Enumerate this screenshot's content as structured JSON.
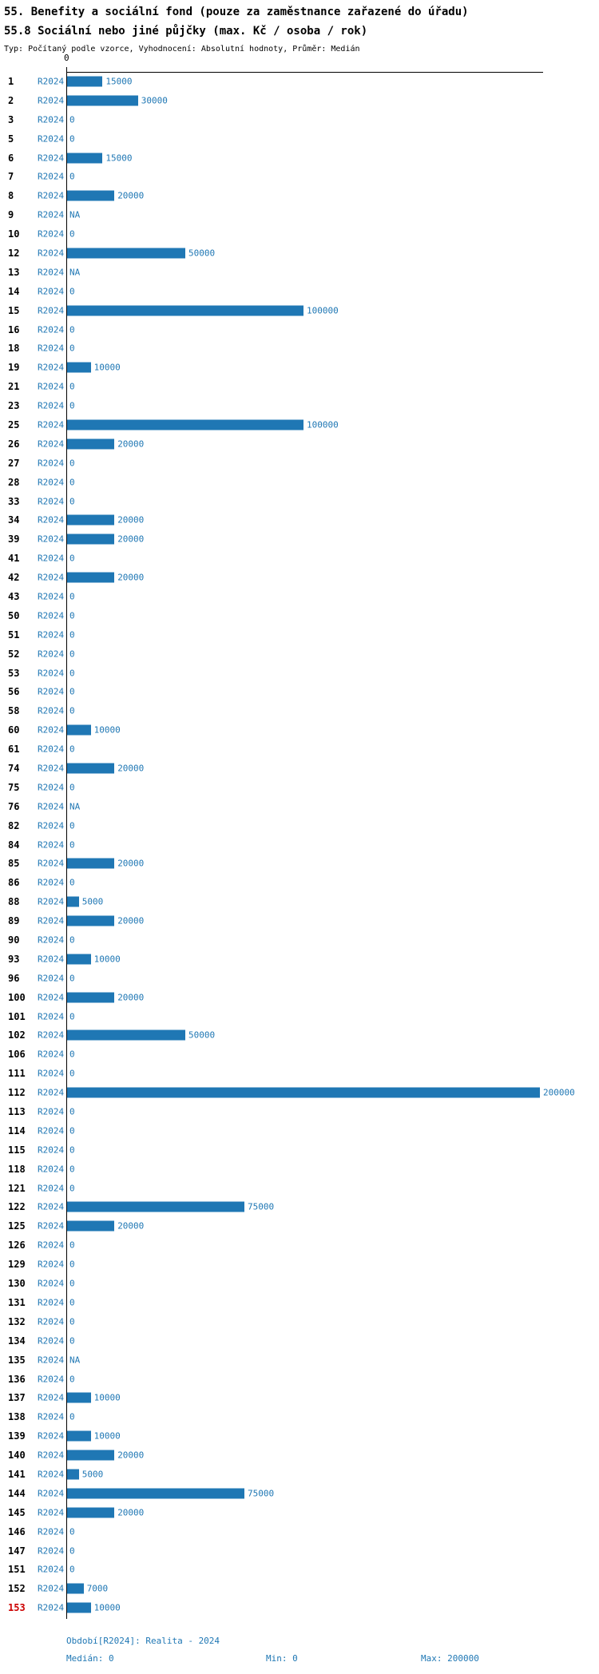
{
  "header": {
    "title": "55. Benefity a sociální fond (pouze za zaměstnance zařazené do úřadu)",
    "subtitle": "55.8 Sociální nebo jiné půjčky (max. Kč / osoba / rok)",
    "meta": "Typ: Počítaný podle vzorce, Vyhodnocení: Absolutní hodnoty, Průměr: Medián"
  },
  "chart_data": {
    "type": "bar",
    "orientation": "horizontal",
    "series_label": "R2024",
    "xlim": [
      0,
      200000
    ],
    "axis": {
      "tick_labels": [
        "0"
      ]
    },
    "grid": false,
    "bar_color": "#1f77b4",
    "label_color": "#1f77b4",
    "id_color": "#000000",
    "highlight_color": "#cc0000",
    "highlight_row_id": "153",
    "rows": [
      {
        "id": "1",
        "value": 15000,
        "label": "15000"
      },
      {
        "id": "2",
        "value": 30000,
        "label": "30000"
      },
      {
        "id": "3",
        "value": 0,
        "label": "0"
      },
      {
        "id": "5",
        "value": 0,
        "label": "0"
      },
      {
        "id": "6",
        "value": 15000,
        "label": "15000"
      },
      {
        "id": "7",
        "value": 0,
        "label": "0"
      },
      {
        "id": "8",
        "value": 20000,
        "label": "20000"
      },
      {
        "id": "9",
        "value": null,
        "label": "NA"
      },
      {
        "id": "10",
        "value": 0,
        "label": "0"
      },
      {
        "id": "12",
        "value": 50000,
        "label": "50000"
      },
      {
        "id": "13",
        "value": null,
        "label": "NA"
      },
      {
        "id": "14",
        "value": 0,
        "label": "0"
      },
      {
        "id": "15",
        "value": 100000,
        "label": "100000"
      },
      {
        "id": "16",
        "value": 0,
        "label": "0"
      },
      {
        "id": "18",
        "value": 0,
        "label": "0"
      },
      {
        "id": "19",
        "value": 10000,
        "label": "10000"
      },
      {
        "id": "21",
        "value": 0,
        "label": "0"
      },
      {
        "id": "23",
        "value": 0,
        "label": "0"
      },
      {
        "id": "25",
        "value": 100000,
        "label": "100000"
      },
      {
        "id": "26",
        "value": 20000,
        "label": "20000"
      },
      {
        "id": "27",
        "value": 0,
        "label": "0"
      },
      {
        "id": "28",
        "value": 0,
        "label": "0"
      },
      {
        "id": "33",
        "value": 0,
        "label": "0"
      },
      {
        "id": "34",
        "value": 20000,
        "label": "20000"
      },
      {
        "id": "39",
        "value": 20000,
        "label": "20000"
      },
      {
        "id": "41",
        "value": 0,
        "label": "0"
      },
      {
        "id": "42",
        "value": 20000,
        "label": "20000"
      },
      {
        "id": "43",
        "value": 0,
        "label": "0"
      },
      {
        "id": "50",
        "value": 0,
        "label": "0"
      },
      {
        "id": "51",
        "value": 0,
        "label": "0"
      },
      {
        "id": "52",
        "value": 0,
        "label": "0"
      },
      {
        "id": "53",
        "value": 0,
        "label": "0"
      },
      {
        "id": "56",
        "value": 0,
        "label": "0"
      },
      {
        "id": "58",
        "value": 0,
        "label": "0"
      },
      {
        "id": "60",
        "value": 10000,
        "label": "10000"
      },
      {
        "id": "61",
        "value": 0,
        "label": "0"
      },
      {
        "id": "74",
        "value": 20000,
        "label": "20000"
      },
      {
        "id": "75",
        "value": 0,
        "label": "0"
      },
      {
        "id": "76",
        "value": null,
        "label": "NA"
      },
      {
        "id": "82",
        "value": 0,
        "label": "0"
      },
      {
        "id": "84",
        "value": 0,
        "label": "0"
      },
      {
        "id": "85",
        "value": 20000,
        "label": "20000"
      },
      {
        "id": "86",
        "value": 0,
        "label": "0"
      },
      {
        "id": "88",
        "value": 5000,
        "label": "5000"
      },
      {
        "id": "89",
        "value": 20000,
        "label": "20000"
      },
      {
        "id": "90",
        "value": 0,
        "label": "0"
      },
      {
        "id": "93",
        "value": 10000,
        "label": "10000"
      },
      {
        "id": "96",
        "value": 0,
        "label": "0"
      },
      {
        "id": "100",
        "value": 20000,
        "label": "20000"
      },
      {
        "id": "101",
        "value": 0,
        "label": "0"
      },
      {
        "id": "102",
        "value": 50000,
        "label": "50000"
      },
      {
        "id": "106",
        "value": 0,
        "label": "0"
      },
      {
        "id": "111",
        "value": 0,
        "label": "0"
      },
      {
        "id": "112",
        "value": 200000,
        "label": "200000"
      },
      {
        "id": "113",
        "value": 0,
        "label": "0"
      },
      {
        "id": "114",
        "value": 0,
        "label": "0"
      },
      {
        "id": "115",
        "value": 0,
        "label": "0"
      },
      {
        "id": "118",
        "value": 0,
        "label": "0"
      },
      {
        "id": "121",
        "value": 0,
        "label": "0"
      },
      {
        "id": "122",
        "value": 75000,
        "label": "75000"
      },
      {
        "id": "125",
        "value": 20000,
        "label": "20000"
      },
      {
        "id": "126",
        "value": 0,
        "label": "0"
      },
      {
        "id": "129",
        "value": 0,
        "label": "0"
      },
      {
        "id": "130",
        "value": 0,
        "label": "0"
      },
      {
        "id": "131",
        "value": 0,
        "label": "0"
      },
      {
        "id": "132",
        "value": 0,
        "label": "0"
      },
      {
        "id": "134",
        "value": 0,
        "label": "0"
      },
      {
        "id": "135",
        "value": null,
        "label": "NA"
      },
      {
        "id": "136",
        "value": 0,
        "label": "0"
      },
      {
        "id": "137",
        "value": 10000,
        "label": "10000"
      },
      {
        "id": "138",
        "value": 0,
        "label": "0"
      },
      {
        "id": "139",
        "value": 10000,
        "label": "10000"
      },
      {
        "id": "140",
        "value": 20000,
        "label": "20000"
      },
      {
        "id": "141",
        "value": 5000,
        "label": "5000"
      },
      {
        "id": "144",
        "value": 75000,
        "label": "75000"
      },
      {
        "id": "145",
        "value": 20000,
        "label": "20000"
      },
      {
        "id": "146",
        "value": 0,
        "label": "0"
      },
      {
        "id": "147",
        "value": 0,
        "label": "0"
      },
      {
        "id": "151",
        "value": 0,
        "label": "0"
      },
      {
        "id": "152",
        "value": 7000,
        "label": "7000"
      },
      {
        "id": "153",
        "value": 10000,
        "label": "10000"
      }
    ]
  },
  "footer": {
    "period": "Období[R2024]: Realita - 2024",
    "median": "Medián: 0",
    "min": "Min: 0",
    "max": "Max: 200000"
  }
}
